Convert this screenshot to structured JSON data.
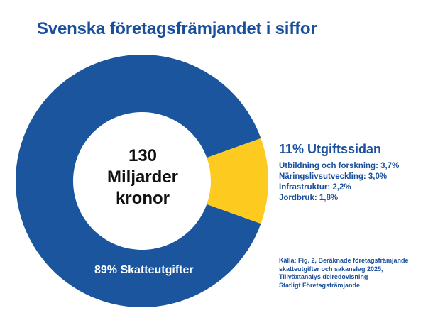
{
  "title": "Svenska företagsfrämjandet i siffor",
  "center": {
    "line1": "130",
    "line2": "Miljarder",
    "line3": "kronor"
  },
  "colors": {
    "blue": "#1a559e",
    "yellow": "#fdca1f",
    "text_blue": "#1a4f9c"
  },
  "chart_data": {
    "type": "pie",
    "title": "Svenska företagsfrämjandet i siffor",
    "total_label": "130 Miljarder kronor",
    "slices": [
      {
        "name": "Skatteutgifter",
        "value": 89,
        "label": "89% Skatteutgifter",
        "color": "#1a559e"
      },
      {
        "name": "Utgiftssidan",
        "value": 11,
        "label": "11% Utgiftssidan",
        "color": "#fdca1f"
      }
    ],
    "breakdown": [
      "Utbildning och forskning: 3,7%",
      "Näringslivsutveckling: 3,0%",
      "Infrastruktur:  2,2%",
      "Jordbruk: 1,8%"
    ]
  },
  "source_lines": [
    "Källa: Fig. 2, Beräknade företagsfrämjande",
    "skatteutgifter och sakanslag 2025,",
    "Tillväxtanalys delredovisning",
    "Statligt Företagsfrämjande"
  ]
}
